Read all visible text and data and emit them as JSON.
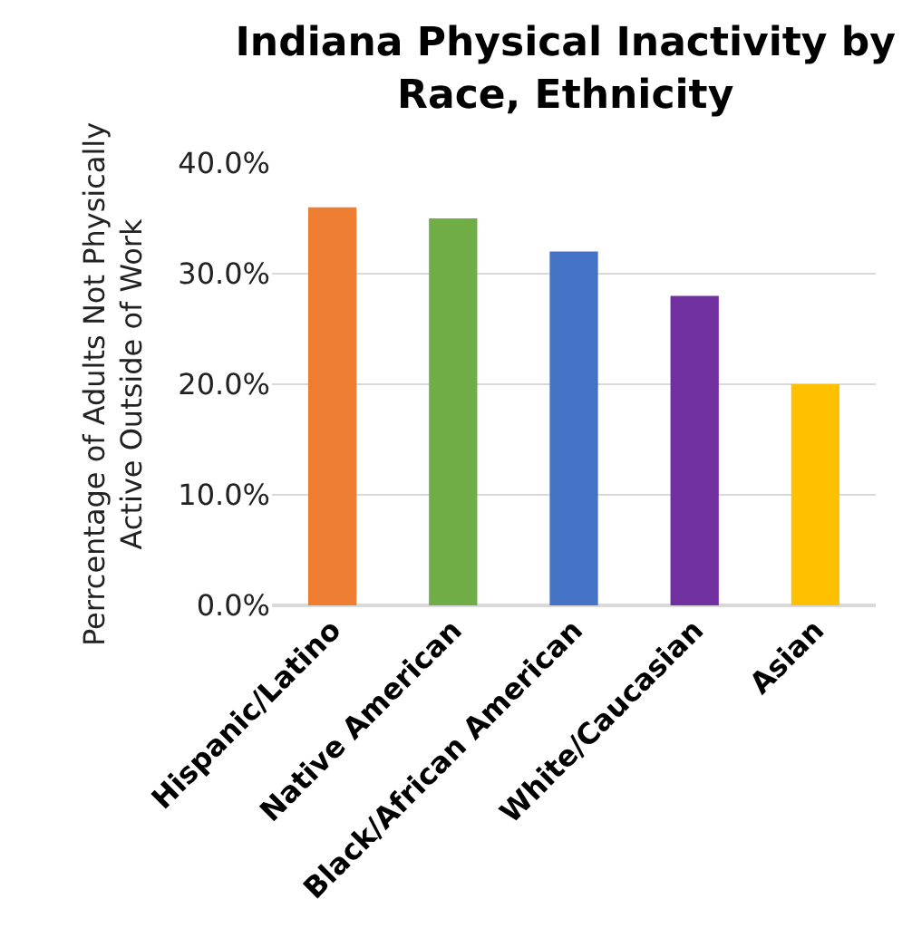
{
  "chart_data": {
    "type": "bar",
    "title": "Indiana Physical Inactivity by Race, Ethnicity",
    "ylabel": "Perrcentage of Adults Not Physically Active Outside of Work",
    "categories": [
      "Hispanic/Latino",
      "Native American",
      "Black/African American",
      "White/Caucasian",
      "Asian"
    ],
    "values": [
      36,
      35,
      32,
      28,
      20
    ],
    "colors": [
      "#ed7d31",
      "#70ad47",
      "#4472c4",
      "#7030a0",
      "#ffc000"
    ],
    "ylim": [
      0,
      40
    ],
    "yticks": [
      {
        "value": 0,
        "label": "0.0%"
      },
      {
        "value": 10,
        "label": "10.0%"
      },
      {
        "value": 20,
        "label": "20.0%"
      },
      {
        "value": 30,
        "label": "30.0%"
      },
      {
        "value": 40,
        "label": "40.0%"
      }
    ],
    "grid": "y"
  }
}
